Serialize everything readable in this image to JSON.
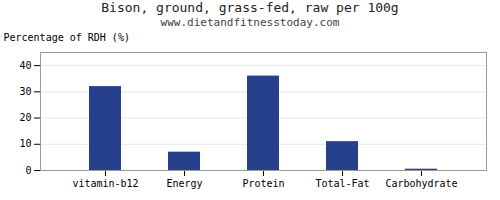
{
  "chart_data": {
    "type": "bar",
    "title": "Bison, ground, grass-fed, raw per 100g",
    "subtitle": "www.dietandfitnesstoday.com",
    "categories": [
      "vitamin-b12",
      "Energy",
      "Protein",
      "Total-Fat",
      "Carbohydrate"
    ],
    "values": [
      32,
      7,
      36,
      11,
      0.5
    ],
    "color": "#27408b",
    "ylabel": "Percentage of RDH (%)",
    "ylim": [
      0,
      45
    ],
    "yticks": [
      0,
      10,
      20,
      30,
      40
    ],
    "grid": true
  }
}
